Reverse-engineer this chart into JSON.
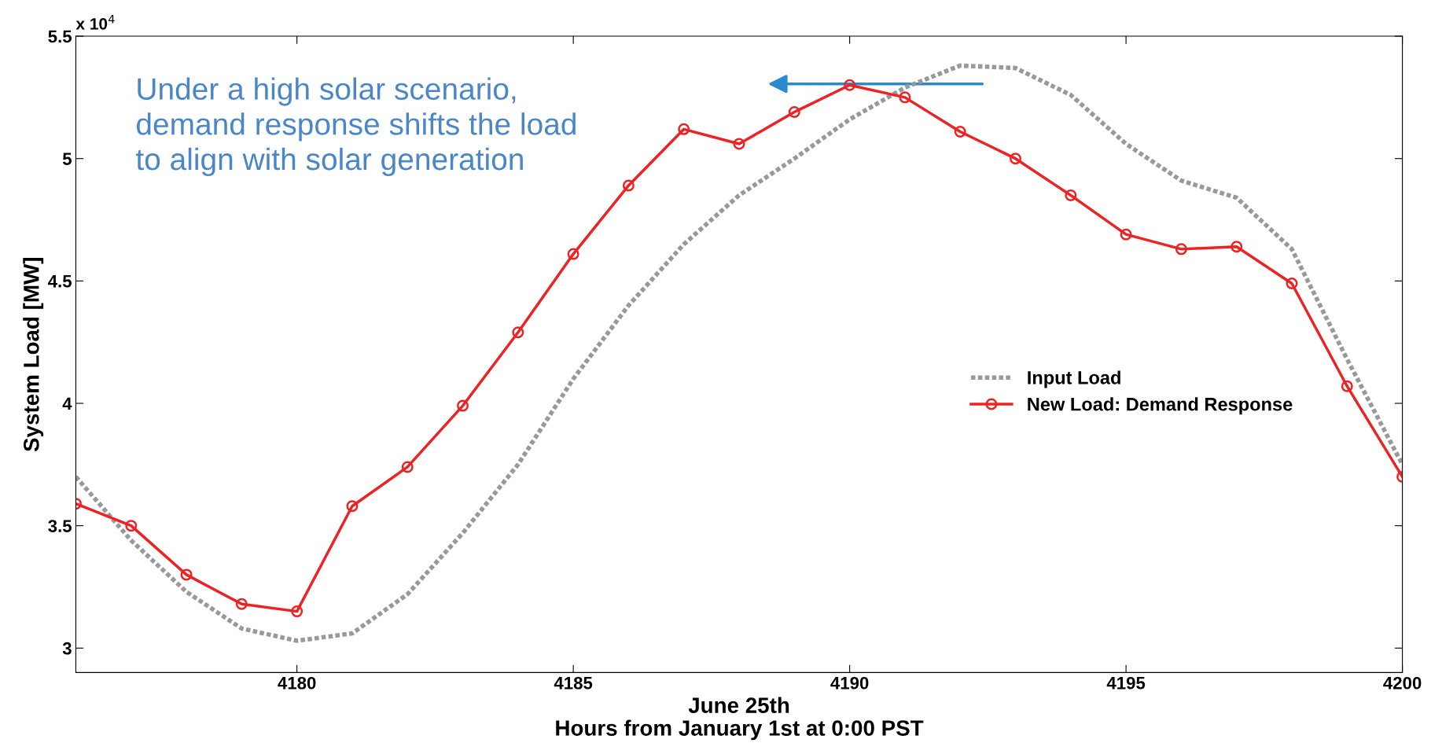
{
  "chart_data": {
    "type": "line",
    "xlabel": "June 25th\nHours from January 1st at 0:00 PST",
    "ylabel": "System Load [MW]",
    "x": [
      4176,
      4177,
      4178,
      4179,
      4180,
      4181,
      4182,
      4183,
      4184,
      4185,
      4186,
      4187,
      4188,
      4189,
      4190,
      4191,
      4192,
      4193,
      4194,
      4195,
      4196,
      4197,
      4198,
      4199,
      4200
    ],
    "series": [
      {
        "name": "Input Load",
        "color": "#999999",
        "line_style": "dotted",
        "marker": "none",
        "values": [
          3.7,
          3.44,
          3.23,
          3.08,
          3.03,
          3.06,
          3.22,
          3.47,
          3.75,
          4.1,
          4.4,
          4.65,
          4.85,
          5.0,
          5.16,
          5.29,
          5.38,
          5.37,
          5.26,
          5.06,
          4.91,
          4.84,
          4.63,
          4.18,
          3.75
        ]
      },
      {
        "name": "New Load: Demand Response",
        "color": "#ee2222",
        "line_style": "solid",
        "marker": "circle",
        "values": [
          3.59,
          3.5,
          3.3,
          3.18,
          3.15,
          3.58,
          3.74,
          3.99,
          4.29,
          4.61,
          4.89,
          5.12,
          5.06,
          5.19,
          5.3,
          5.25,
          5.11,
          5.0,
          4.85,
          4.69,
          4.63,
          4.64,
          4.49,
          4.07,
          3.7
        ]
      }
    ],
    "xlim": [
      4176,
      4200
    ],
    "xticks": [
      4180,
      4185,
      4190,
      4195,
      4200
    ],
    "ylim": [
      2.9,
      5.5
    ],
    "yticks": [
      3,
      3.5,
      4,
      4.5,
      5,
      5.5
    ],
    "annotations": [
      "x 10$^{4}$",
      "Under a high solar scenario,\ndemand response shifts the load\nto align with solar generation"
    ],
    "grid": false,
    "legend": "right"
  }
}
